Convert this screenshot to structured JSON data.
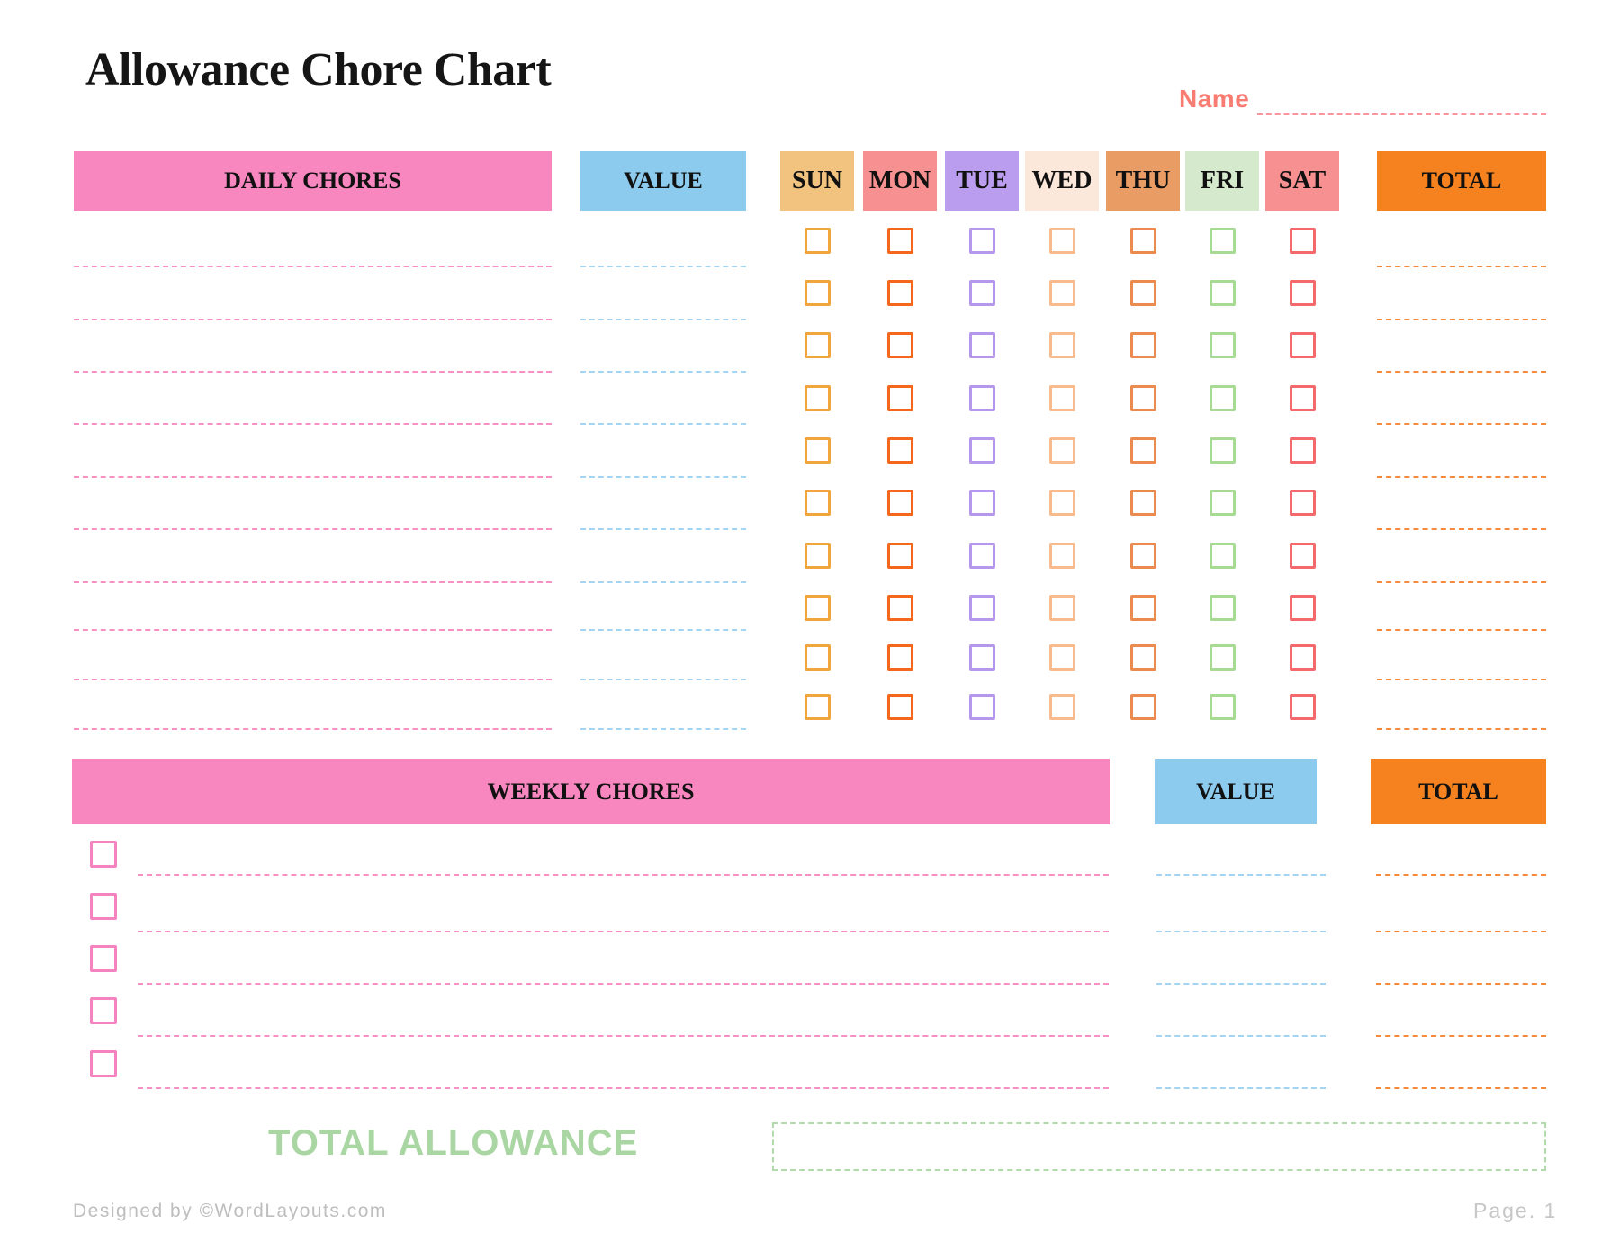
{
  "page": {
    "title": "Allowance Chore Chart",
    "name_label": "Name",
    "total_allowance_label": "TOTAL ALLOWANCE",
    "footer_left": "Designed by ©WordLayouts.com",
    "footer_right": "Page. 1"
  },
  "colors": {
    "pink_header": "#f887c0",
    "blue_header": "#8ccbed",
    "orange_header": "#f5821f",
    "name_label": "#f97c72",
    "name_line": "#f9959b",
    "pink_line": "#f890c4",
    "blue_line": "#a3d4f1",
    "orange_line": "#f58a3c",
    "weekly_checkbox": "#f483bf",
    "green_text": "#a9d6a2",
    "green_box_border": "#b2daaa",
    "footer_gray": "#bebebe"
  },
  "daily": {
    "chores_header": "DAILY CHORES",
    "value_header": "VALUE",
    "total_header": "TOTAL",
    "rows": 10,
    "days": [
      {
        "label": "SUN",
        "header_bg": "#f2c37e",
        "checkbox_color": "#f0a63c"
      },
      {
        "label": "MON",
        "header_bg": "#f79090",
        "checkbox_color": "#f4671c"
      },
      {
        "label": "TUE",
        "header_bg": "#ba9dee",
        "checkbox_color": "#b598eb"
      },
      {
        "label": "WED",
        "header_bg": "#fbe8da",
        "checkbox_color": "#f8bb8d"
      },
      {
        "label": "THU",
        "header_bg": "#e99c64",
        "checkbox_color": "#ec8b50"
      },
      {
        "label": "FRI",
        "header_bg": "#d5e9cc",
        "checkbox_color": "#a7db93"
      },
      {
        "label": "SAT",
        "header_bg": "#f79090",
        "checkbox_color": "#f4696c"
      }
    ]
  },
  "weekly": {
    "chores_header": "WEEKLY CHORES",
    "value_header": "VALUE",
    "total_header": "TOTAL",
    "rows": 5
  }
}
